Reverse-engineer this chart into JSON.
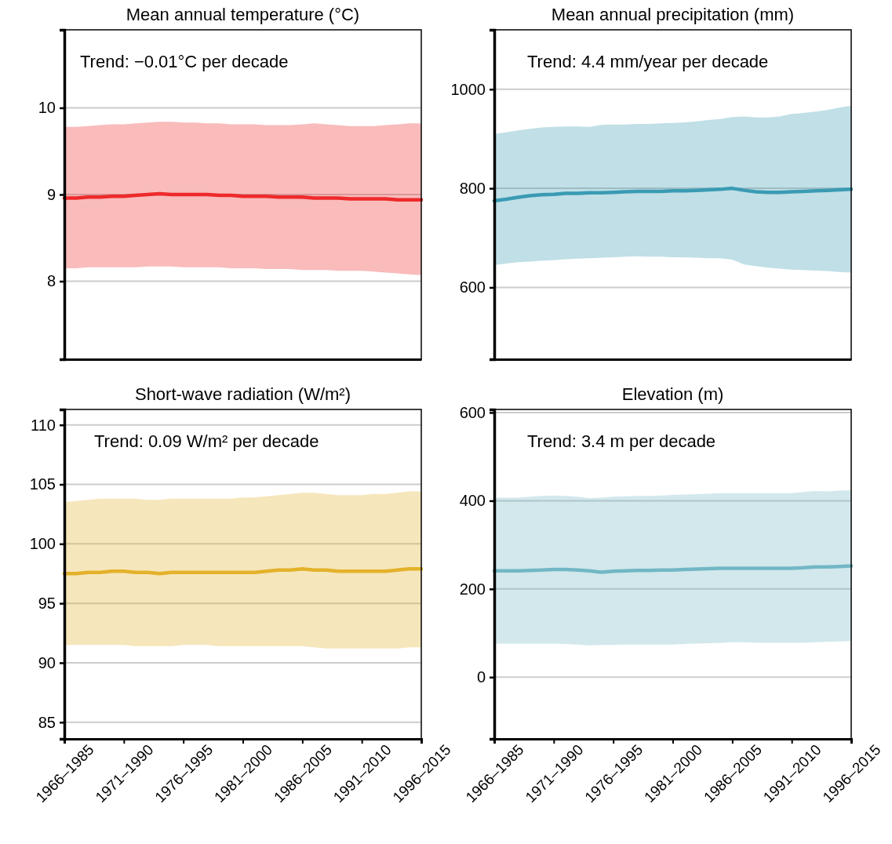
{
  "chart_data": [
    {
      "type": "line",
      "title": "Mean annual temperature (°C)",
      "tick_labels": "y",
      "grid": "y",
      "ylim": [
        7.1,
        10.9
      ],
      "yticks": [
        8,
        9,
        10
      ],
      "annotations": [
        "Trend: −0.01°C per decade"
      ],
      "categories": [
        null,
        null,
        null,
        null,
        null,
        null,
        null,
        null,
        null,
        null,
        null,
        null,
        null,
        null,
        null,
        null,
        null,
        null,
        null,
        null,
        null,
        null,
        null,
        null,
        null,
        null,
        null,
        null,
        null,
        null,
        null
      ],
      "series": [
        {
          "color": "#ee2a2a",
          "values": [
            8.96,
            8.96,
            8.97,
            8.97,
            8.98,
            8.98,
            8.99,
            9.0,
            9.01,
            9.0,
            9.0,
            9.0,
            9.0,
            8.99,
            8.99,
            8.98,
            8.98,
            8.98,
            8.97,
            8.97,
            8.97,
            8.96,
            8.96,
            8.96,
            8.95,
            8.95,
            8.95,
            8.95,
            8.94,
            8.94,
            8.94
          ],
          "upper": [
            9.78,
            9.78,
            9.79,
            9.8,
            9.81,
            9.81,
            9.82,
            9.83,
            9.84,
            9.84,
            9.83,
            9.83,
            9.82,
            9.82,
            9.81,
            9.81,
            9.81,
            9.8,
            9.8,
            9.8,
            9.81,
            9.82,
            9.81,
            9.8,
            9.79,
            9.79,
            9.79,
            9.8,
            9.81,
            9.82,
            9.82
          ],
          "lower": [
            8.15,
            8.15,
            8.16,
            8.16,
            8.16,
            8.16,
            8.16,
            8.17,
            8.17,
            8.17,
            8.16,
            8.16,
            8.16,
            8.16,
            8.15,
            8.15,
            8.15,
            8.14,
            8.14,
            8.14,
            8.13,
            8.13,
            8.13,
            8.12,
            8.12,
            8.12,
            8.11,
            8.1,
            8.09,
            8.08,
            8.07
          ]
        }
      ]
    },
    {
      "type": "line",
      "title": "Mean annual precipitation (mm)",
      "tick_labels": "y",
      "grid": "y",
      "ylim": [
        455,
        1120
      ],
      "yticks": [
        600,
        800,
        1000
      ],
      "annotations": [
        "Trend: 4.4 mm/year per decade"
      ],
      "categories": [
        null,
        null,
        null,
        null,
        null,
        null,
        null,
        null,
        null,
        null,
        null,
        null,
        null,
        null,
        null,
        null,
        null,
        null,
        null,
        null,
        null,
        null,
        null,
        null,
        null,
        null,
        null,
        null,
        null,
        null,
        null
      ],
      "series": [
        {
          "color": "#3a9bb3",
          "values": [
            775,
            778,
            782,
            785,
            787,
            788,
            790,
            790,
            791,
            791,
            792,
            793,
            794,
            794,
            794,
            795,
            795,
            796,
            797,
            798,
            800,
            796,
            793,
            792,
            792,
            793,
            794,
            795,
            796,
            797,
            798
          ],
          "upper": [
            910,
            913,
            917,
            920,
            923,
            924,
            925,
            925,
            924,
            928,
            929,
            929,
            930,
            930,
            931,
            932,
            933,
            935,
            938,
            940,
            944,
            945,
            943,
            943,
            945,
            950,
            952,
            955,
            958,
            963,
            967
          ],
          "lower": [
            645,
            648,
            651,
            652,
            654,
            655,
            657,
            658,
            659,
            660,
            661,
            662,
            663,
            662,
            662,
            661,
            661,
            660,
            659,
            659,
            656,
            646,
            643,
            640,
            638,
            636,
            635,
            634,
            633,
            631,
            630
          ]
        }
      ]
    },
    {
      "type": "line",
      "title": "Short-wave radiation (W/m²)",
      "grid": "y",
      "ylim": [
        83.6,
        111.3
      ],
      "yticks": [
        85,
        90,
        95,
        100,
        105,
        110
      ],
      "annotations": [
        "Trend: 0.09 W/m² per decade"
      ],
      "categories": [
        "1966–1985",
        null,
        null,
        null,
        null,
        "1971–1990",
        null,
        null,
        null,
        null,
        "1976–1995",
        null,
        null,
        null,
        null,
        "1981–2000",
        null,
        null,
        null,
        null,
        "1986–2005",
        null,
        null,
        null,
        null,
        "1991–2010",
        null,
        null,
        null,
        null,
        "1996–2015"
      ],
      "series": [
        {
          "color": "#e3b22a",
          "values": [
            97.5,
            97.5,
            97.6,
            97.6,
            97.7,
            97.7,
            97.6,
            97.6,
            97.5,
            97.6,
            97.6,
            97.6,
            97.6,
            97.6,
            97.6,
            97.6,
            97.6,
            97.7,
            97.8,
            97.8,
            97.9,
            97.8,
            97.8,
            97.7,
            97.7,
            97.7,
            97.7,
            97.7,
            97.8,
            97.9,
            97.9
          ],
          "upper": [
            103.5,
            103.6,
            103.7,
            103.8,
            103.8,
            103.8,
            103.8,
            103.7,
            103.7,
            103.8,
            103.8,
            103.8,
            103.8,
            103.8,
            103.8,
            103.9,
            103.9,
            104.0,
            104.1,
            104.2,
            104.3,
            104.3,
            104.2,
            104.1,
            104.1,
            104.1,
            104.2,
            104.2,
            104.3,
            104.4,
            104.4
          ],
          "lower": [
            91.5,
            91.5,
            91.5,
            91.5,
            91.5,
            91.5,
            91.4,
            91.4,
            91.4,
            91.4,
            91.5,
            91.5,
            91.5,
            91.4,
            91.4,
            91.4,
            91.4,
            91.4,
            91.4,
            91.4,
            91.4,
            91.3,
            91.2,
            91.2,
            91.2,
            91.2,
            91.2,
            91.2,
            91.2,
            91.3,
            91.3
          ]
        }
      ]
    },
    {
      "type": "line",
      "title": "Elevation (m)",
      "grid": "y",
      "ylim": [
        -140,
        607
      ],
      "yticks": [
        0,
        200,
        400,
        600
      ],
      "annotations": [
        "Trend: 3.4 m per decade"
      ],
      "categories": [
        "1966–1985",
        null,
        null,
        null,
        null,
        "1971–1990",
        null,
        null,
        null,
        null,
        "1976–1995",
        null,
        null,
        null,
        null,
        "1981–2000",
        null,
        null,
        null,
        null,
        "1986–2005",
        null,
        null,
        null,
        null,
        "1991–2010",
        null,
        null,
        null,
        null,
        "1996–2015"
      ],
      "series": [
        {
          "color": "#72b7c5",
          "values": [
            241,
            241,
            241,
            242,
            243,
            244,
            244,
            243,
            241,
            238,
            240,
            241,
            242,
            242,
            243,
            243,
            244,
            245,
            246,
            247,
            247,
            247,
            247,
            247,
            247,
            247,
            248,
            250,
            250,
            251,
            252
          ],
          "upper": [
            407,
            407,
            407,
            409,
            411,
            412,
            411,
            409,
            406,
            407,
            409,
            410,
            411,
            411,
            412,
            413,
            414,
            415,
            416,
            417,
            417,
            417,
            417,
            417,
            417,
            417,
            420,
            422,
            421,
            423,
            424
          ],
          "lower": [
            76,
            76,
            76,
            76,
            76,
            76,
            75,
            74,
            72,
            73,
            73,
            74,
            74,
            74,
            74,
            74,
            75,
            76,
            77,
            78,
            79,
            79,
            78,
            78,
            78,
            78,
            78,
            79,
            80,
            81,
            82
          ]
        }
      ]
    }
  ]
}
